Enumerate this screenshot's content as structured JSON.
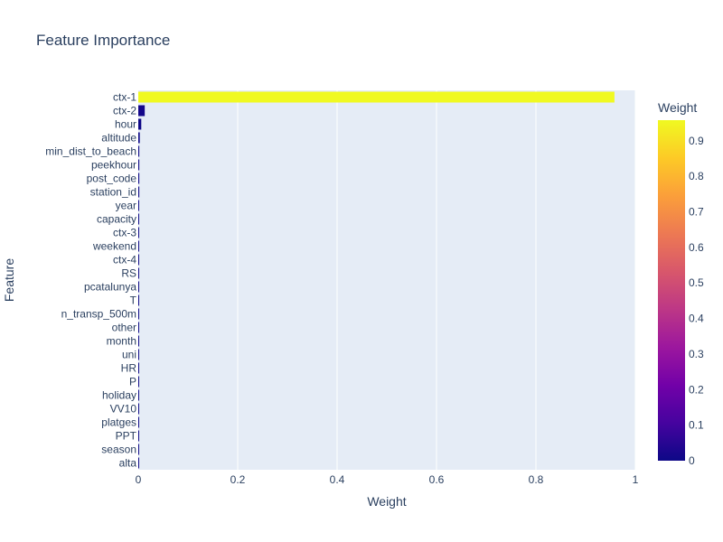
{
  "chart_data": {
    "type": "bar",
    "orientation": "horizontal",
    "title": "Feature Importance",
    "xlabel": "Weight",
    "ylabel": "Feature",
    "xlim": [
      0,
      1.0
    ],
    "x_ticks": [
      0,
      0.2,
      0.4,
      0.6,
      0.8,
      1
    ],
    "x_tick_labels": [
      "0",
      "0.2",
      "0.4",
      "0.6",
      "0.8",
      "1"
    ],
    "grid": true,
    "categories": [
      "ctx-1",
      "ctx-2",
      "hour",
      "altitude",
      "min_dist_to_beach",
      "peekhour",
      "post_code",
      "station_id",
      "year",
      "capacity",
      "ctx-3",
      "weekend",
      "ctx-4",
      "RS",
      "pcatalunya",
      "T",
      "n_transp_500m",
      "other",
      "month",
      "uni",
      "HR",
      "P",
      "holiday",
      "VV10",
      "platges",
      "PPT",
      "season",
      "alta"
    ],
    "values": [
      0.958,
      0.013,
      0.006,
      0.003,
      0.002,
      0.002,
      0.002,
      0.002,
      0.001,
      0.001,
      0.001,
      0.001,
      0.001,
      0.001,
      0.001,
      0.0008,
      0.0008,
      0.0007,
      0.0007,
      0.0006,
      0.0006,
      0.0005,
      0.0005,
      0.0005,
      0.0004,
      0.0004,
      0.0003,
      0.0003
    ],
    "colorbar": {
      "title": "Weight",
      "range": [
        0,
        0.958
      ],
      "ticks": [
        0,
        0.1,
        0.2,
        0.3,
        0.4,
        0.5,
        0.6,
        0.7,
        0.8,
        0.9
      ],
      "tick_labels": [
        "0",
        "0.1",
        "0.2",
        "0.3",
        "0.4",
        "0.5",
        "0.6",
        "0.7",
        "0.8",
        "0.9"
      ],
      "colorscale": [
        "#0d0887",
        "#46039f",
        "#7201a8",
        "#9c179e",
        "#bd3786",
        "#d8576b",
        "#ed7953",
        "#fb9f3a",
        "#fdca26",
        "#f0f921"
      ]
    }
  }
}
